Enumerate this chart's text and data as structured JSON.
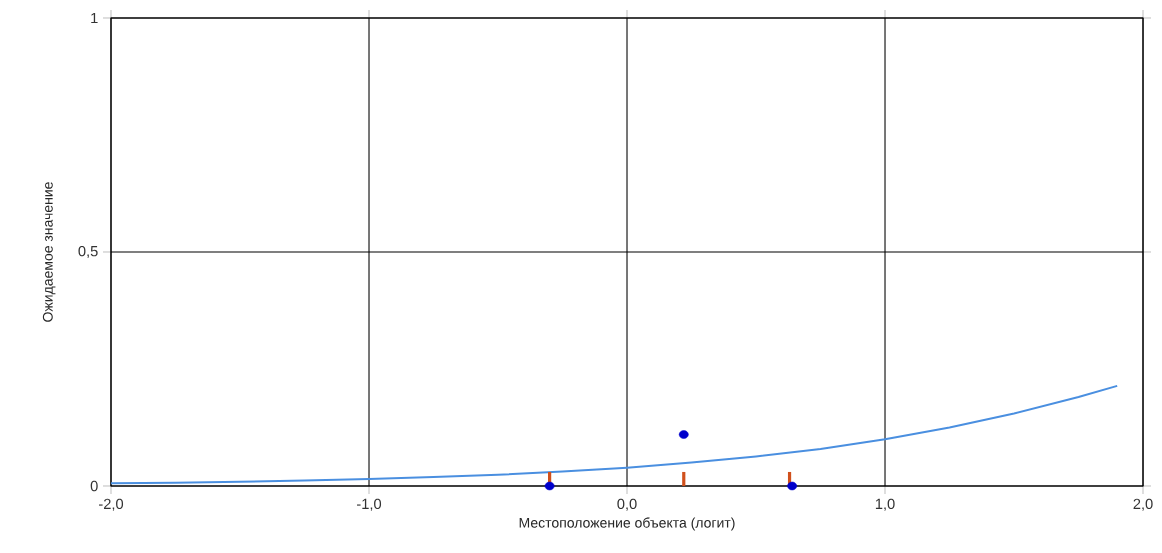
{
  "chart_data": {
    "type": "line",
    "xlabel": "Местоположение объекта (логит)",
    "ylabel": "Ожидаемое значение",
    "xlim": [
      -2,
      2
    ],
    "ylim": [
      0,
      1
    ],
    "xticks": [
      {
        "value": -2,
        "label": "-2,0"
      },
      {
        "value": -1,
        "label": "-1,0"
      },
      {
        "value": 0,
        "label": "0,0"
      },
      {
        "value": 1,
        "label": "1,0"
      },
      {
        "value": 2,
        "label": "2,0"
      }
    ],
    "yticks": [
      0,
      {
        "value": 0.5,
        "label": "0,5"
      },
      1
    ],
    "grid": true,
    "series": [
      {
        "color": "#4a8fe0",
        "marker": "none",
        "line_style": "solid",
        "x": [
          -2,
          -1.75,
          -1.5,
          -1.25,
          -1,
          -0.75,
          -0.5,
          -0.25,
          0,
          0.25,
          0.5,
          0.75,
          1,
          1.25,
          1.5,
          1.75,
          1.9
        ],
        "values": [
          0.006,
          0.007,
          0.009,
          0.012,
          0.015,
          0.019,
          0.024,
          0.031,
          0.039,
          0.05,
          0.063,
          0.079,
          0.1,
          0.125,
          0.155,
          0.19,
          0.214
        ]
      },
      {
        "type": "bar",
        "color": "#d0501c",
        "x": [
          -0.3,
          0.22,
          0.63
        ],
        "values": [
          0.03,
          0.03,
          0.03
        ]
      },
      {
        "type": "scatter",
        "color": "#0000cc",
        "marker": "circle",
        "x": [
          -0.3,
          0.22,
          0.64
        ],
        "values": [
          0,
          0.11,
          0
        ]
      }
    ]
  }
}
